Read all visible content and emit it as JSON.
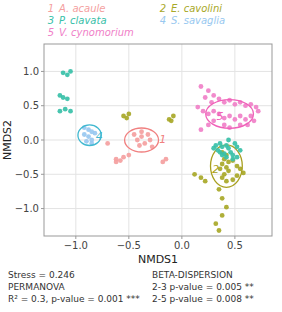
{
  "chart_data": {
    "type": "scatter",
    "xlabel": "NMDS1",
    "ylabel": "NMDS2",
    "xlim": [
      -1.3,
      0.85
    ],
    "ylim": [
      -1.4,
      1.4
    ],
    "xticks": [
      {
        "value": -1.0,
        "label": "−1.0"
      },
      {
        "value": -0.5,
        "label": "−0.5"
      },
      {
        "value": 0.0,
        "label": "0.0"
      },
      {
        "value": 0.5,
        "label": "0.5"
      }
    ],
    "yticks": [
      {
        "value": -1.0,
        "label": "−1.0"
      },
      {
        "value": -0.5,
        "label": "−0.5"
      },
      {
        "value": 0.0,
        "label": "0.0"
      },
      {
        "value": 0.5,
        "label": "0.5"
      },
      {
        "value": 1.0,
        "label": "1.0"
      }
    ],
    "grid": true,
    "legend": "top",
    "series": [
      {
        "name": "A. acaule",
        "number": "1",
        "color": "#F4A0A0",
        "x": [
          -0.38,
          -0.42,
          -0.35,
          -0.3,
          -0.32,
          -0.28,
          -0.45,
          -0.38,
          -0.4,
          -0.55,
          -0.62,
          -0.58,
          -0.62,
          -0.5,
          -0.7,
          -0.15,
          -0.18
        ],
        "values": [
          0.05,
          0.0,
          -0.05,
          0.0,
          0.08,
          -0.1,
          0.08,
          0.12,
          -0.08,
          -0.25,
          -0.28,
          -0.3,
          -0.32,
          -0.22,
          -0.05,
          -0.28,
          -0.32
        ],
        "ellipse": {
          "cx": -0.38,
          "cy": 0.0,
          "width": 0.32,
          "height": 0.35,
          "angle": 0
        },
        "ellipse_color": "#F08080",
        "number_position": [
          -0.18,
          0.02
        ]
      },
      {
        "name": "E. cavolini",
        "number": "2",
        "color": "#A8A828",
        "x": [
          0.38,
          0.42,
          0.4,
          0.44,
          0.38,
          0.42,
          0.36,
          0.44,
          0.4,
          0.38,
          0.42,
          0.35,
          0.38,
          0.42,
          0.38,
          0.32,
          0.35,
          0.48,
          0.52,
          0.55,
          0.58,
          0.52,
          0.48,
          -0.08,
          -0.12,
          -0.1,
          -0.5,
          -0.55,
          -0.52,
          0.12,
          0.18,
          0.22
        ],
        "values": [
          -0.18,
          -0.22,
          -0.28,
          -0.32,
          -0.35,
          -0.4,
          -0.42,
          -0.45,
          -0.5,
          -0.55,
          -0.6,
          -0.72,
          -0.85,
          -0.98,
          -1.1,
          -1.22,
          -1.32,
          -0.3,
          -0.38,
          -0.42,
          -0.48,
          -0.52,
          -0.58,
          0.35,
          0.3,
          0.28,
          0.38,
          0.35,
          0.32,
          -0.5,
          -0.55,
          -0.6
        ],
        "ellipse": {
          "cx": 0.42,
          "cy": -0.38,
          "width": 0.3,
          "height": 0.62,
          "angle": 0
        },
        "ellipse_color": "#A8A020",
        "number_position": [
          0.32,
          -0.42
        ]
      },
      {
        "name": "P. clavata",
        "number": "3",
        "color": "#38C0A8",
        "x": [
          0.32,
          0.36,
          0.3,
          0.34,
          0.38,
          0.42,
          0.36,
          0.4,
          0.44,
          0.38,
          0.42,
          0.46,
          0.48,
          0.52,
          0.55,
          0.5,
          0.44,
          0.48,
          0.52,
          -1.12,
          -1.15,
          -1.08,
          -1.05,
          -1.12,
          -1.08,
          -1.1,
          -1.05,
          -1.15
        ],
        "values": [
          -0.08,
          -0.05,
          -0.12,
          -0.15,
          -0.1,
          -0.08,
          -0.18,
          -0.2,
          -0.12,
          -0.22,
          -0.25,
          -0.18,
          -0.22,
          -0.1,
          -0.15,
          -0.05,
          0.0,
          -0.28,
          -0.25,
          0.62,
          0.65,
          0.6,
          1.0,
          0.98,
          0.95,
          0.45,
          0.42,
          0.42
        ]
      },
      {
        "name": "S. savaglia",
        "number": "4",
        "color": "#98C8F0",
        "x": [
          -0.88,
          -0.92,
          -0.85,
          -0.82,
          -0.85,
          -0.9,
          -0.88,
          -0.92,
          -0.85
        ],
        "values": [
          0.05,
          0.08,
          0.0,
          0.1,
          -0.05,
          -0.02,
          0.15,
          0.18,
          0.12
        ],
        "ellipse": {
          "cx": -0.87,
          "cy": 0.07,
          "width": 0.22,
          "height": 0.3,
          "angle": 0
        },
        "ellipse_color": "#40B8D0",
        "number_position": [
          -0.78,
          0.06
        ]
      },
      {
        "name": "V. cynomorium",
        "number": "5",
        "color": "#F080C8",
        "x": [
          0.18,
          0.25,
          0.3,
          0.22,
          0.35,
          0.28,
          0.4,
          0.45,
          0.5,
          0.55,
          0.6,
          0.65,
          0.7,
          0.72,
          0.15,
          0.2,
          0.25,
          0.3,
          0.35,
          0.4,
          0.45,
          0.5,
          0.55,
          0.6,
          0.65,
          0.68,
          0.4,
          0.45,
          0.3,
          0.25,
          0.18,
          0.55,
          0.62
        ],
        "values": [
          0.78,
          0.72,
          0.65,
          0.62,
          0.6,
          0.55,
          0.55,
          0.58,
          0.52,
          0.55,
          0.5,
          0.52,
          0.48,
          0.42,
          0.48,
          0.42,
          0.38,
          0.42,
          0.38,
          0.32,
          0.35,
          0.3,
          0.35,
          0.3,
          0.35,
          0.28,
          0.22,
          0.18,
          0.28,
          0.22,
          0.15,
          0.22,
          0.22
        ],
        "ellipse": {
          "cx": 0.45,
          "cy": 0.38,
          "width": 0.45,
          "height": 0.42,
          "angle": 0
        },
        "ellipse_color": "#F060B8",
        "number_position": [
          0.36,
          0.35
        ]
      }
    ],
    "annotations": [
      [
        "Stress = 0.246",
        "PERMANOVA",
        "R² = 0.3, p-value = 0.001 ***"
      ],
      [
        "BETA-DISPERSION",
        "2-3 p-value = 0.005 **",
        "2-5 p-value = 0.008 **"
      ]
    ]
  }
}
